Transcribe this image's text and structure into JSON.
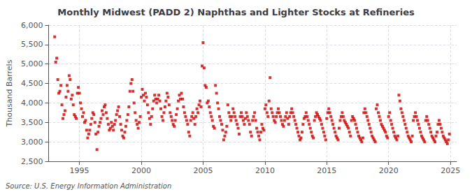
{
  "chart_data": {
    "type": "scatter",
    "title": "Monthly Midwest (PADD 2) Naphthas and Lighter Stocks at Refineries",
    "ylabel": "Thousand Barrels",
    "annotation": "Source: U.S. Energy Information Administration",
    "color": "#CC0000",
    "marker": "square",
    "grid": true,
    "xlim": [
      1992.5,
      2025.5
    ],
    "xticks": [
      1995,
      2000,
      2005,
      2010,
      2015,
      2020,
      2025
    ],
    "ylim": [
      2500,
      6000
    ],
    "yticks": [
      {
        "value": 2500,
        "label": "2,500"
      },
      {
        "value": 3000,
        "label": "3,000"
      },
      {
        "value": 3500,
        "label": "3,500"
      },
      {
        "value": 4000,
        "label": "4,000"
      },
      {
        "value": 4500,
        "label": "4,500"
      },
      {
        "value": 5000,
        "label": "5,000"
      },
      {
        "value": 5500,
        "label": "5,500"
      },
      {
        "value": 6000,
        "label": "6,000"
      }
    ],
    "x": [
      1993.0,
      1993.083,
      1993.167,
      1993.25,
      1993.333,
      1993.417,
      1993.5,
      1993.583,
      1993.667,
      1993.75,
      1993.833,
      1993.917,
      1994.0,
      1994.083,
      1994.167,
      1994.25,
      1994.333,
      1994.417,
      1994.5,
      1994.583,
      1994.667,
      1994.75,
      1994.833,
      1994.917,
      1995.0,
      1995.083,
      1995.167,
      1995.25,
      1995.333,
      1995.417,
      1995.5,
      1995.583,
      1995.667,
      1995.75,
      1995.833,
      1995.917,
      1996.0,
      1996.083,
      1996.167,
      1996.25,
      1996.333,
      1996.417,
      1996.5,
      1996.583,
      1996.667,
      1996.75,
      1996.833,
      1996.917,
      1997.0,
      1997.083,
      1997.167,
      1997.25,
      1997.333,
      1997.417,
      1997.5,
      1997.583,
      1997.667,
      1997.75,
      1997.833,
      1997.917,
      1998.0,
      1998.083,
      1998.167,
      1998.25,
      1998.333,
      1998.417,
      1998.5,
      1998.583,
      1998.667,
      1998.75,
      1998.833,
      1998.917,
      1999.0,
      1999.083,
      1999.167,
      1999.25,
      1999.333,
      1999.417,
      1999.5,
      1999.583,
      1999.667,
      1999.75,
      1999.833,
      1999.917,
      2000.0,
      2000.083,
      2000.167,
      2000.25,
      2000.333,
      2000.417,
      2000.5,
      2000.583,
      2000.667,
      2000.75,
      2000.833,
      2000.917,
      2001.0,
      2001.083,
      2001.167,
      2001.25,
      2001.333,
      2001.417,
      2001.5,
      2001.583,
      2001.667,
      2001.75,
      2001.833,
      2001.917,
      2002.0,
      2002.083,
      2002.167,
      2002.25,
      2002.333,
      2002.417,
      2002.5,
      2002.583,
      2002.667,
      2002.75,
      2002.833,
      2002.917,
      2003.0,
      2003.083,
      2003.167,
      2003.25,
      2003.333,
      2003.417,
      2003.5,
      2003.583,
      2003.667,
      2003.75,
      2003.833,
      2003.917,
      2004.0,
      2004.083,
      2004.167,
      2004.25,
      2004.333,
      2004.417,
      2004.5,
      2004.583,
      2004.667,
      2004.75,
      2004.833,
      2004.917,
      2005.0,
      2005.083,
      2005.167,
      2005.25,
      2005.333,
      2005.417,
      2005.5,
      2005.583,
      2005.667,
      2005.75,
      2005.833,
      2005.917,
      2006.0,
      2006.083,
      2006.167,
      2006.25,
      2006.333,
      2006.417,
      2006.5,
      2006.583,
      2006.667,
      2006.75,
      2006.833,
      2006.917,
      2007.0,
      2007.083,
      2007.167,
      2007.25,
      2007.333,
      2007.417,
      2007.5,
      2007.583,
      2007.667,
      2007.75,
      2007.833,
      2007.917,
      2008.0,
      2008.083,
      2008.167,
      2008.25,
      2008.333,
      2008.417,
      2008.5,
      2008.583,
      2008.667,
      2008.75,
      2008.833,
      2008.917,
      2009.0,
      2009.083,
      2009.167,
      2009.25,
      2009.333,
      2009.417,
      2009.5,
      2009.583,
      2009.667,
      2009.75,
      2009.833,
      2009.917,
      2010.0,
      2010.083,
      2010.167,
      2010.25,
      2010.333,
      2010.417,
      2010.5,
      2010.583,
      2010.667,
      2010.75,
      2010.833,
      2010.917,
      2011.0,
      2011.083,
      2011.167,
      2011.25,
      2011.333,
      2011.417,
      2011.5,
      2011.583,
      2011.667,
      2011.75,
      2011.833,
      2011.917,
      2012.0,
      2012.083,
      2012.167,
      2012.25,
      2012.333,
      2012.417,
      2012.5,
      2012.583,
      2012.667,
      2012.75,
      2012.833,
      2012.917,
      2013.0,
      2013.083,
      2013.167,
      2013.25,
      2013.333,
      2013.417,
      2013.5,
      2013.583,
      2013.667,
      2013.75,
      2013.833,
      2013.917,
      2014.0,
      2014.083,
      2014.167,
      2014.25,
      2014.333,
      2014.417,
      2014.5,
      2014.583,
      2014.667,
      2014.75,
      2014.833,
      2014.917,
      2015.0,
      2015.083,
      2015.167,
      2015.25,
      2015.333,
      2015.417,
      2015.5,
      2015.583,
      2015.667,
      2015.75,
      2015.833,
      2015.917,
      2016.0,
      2016.083,
      2016.167,
      2016.25,
      2016.333,
      2016.417,
      2016.5,
      2016.583,
      2016.667,
      2016.75,
      2016.833,
      2016.917,
      2017.0,
      2017.083,
      2017.167,
      2017.25,
      2017.333,
      2017.417,
      2017.5,
      2017.583,
      2017.667,
      2017.75,
      2017.833,
      2017.917,
      2018.0,
      2018.083,
      2018.167,
      2018.25,
      2018.333,
      2018.417,
      2018.5,
      2018.583,
      2018.667,
      2018.75,
      2018.833,
      2018.917,
      2019.0,
      2019.083,
      2019.167,
      2019.25,
      2019.333,
      2019.417,
      2019.5,
      2019.583,
      2019.667,
      2019.75,
      2019.833,
      2019.917,
      2020.0,
      2020.083,
      2020.167,
      2020.25,
      2020.333,
      2020.417,
      2020.5,
      2020.583,
      2020.667,
      2020.75,
      2020.833,
      2020.917,
      2021.0,
      2021.083,
      2021.167,
      2021.25,
      2021.333,
      2021.417,
      2021.5,
      2021.583,
      2021.667,
      2021.75,
      2021.833,
      2021.917,
      2022.0,
      2022.083,
      2022.167,
      2022.25,
      2022.333,
      2022.417,
      2022.5,
      2022.583,
      2022.667,
      2022.75,
      2022.833,
      2022.917,
      2023.0,
      2023.083,
      2023.167,
      2023.25,
      2023.333,
      2023.417,
      2023.5,
      2023.583,
      2023.667,
      2023.75,
      2023.833,
      2023.917,
      2024.0,
      2024.083,
      2024.167,
      2024.25,
      2024.333,
      2024.417,
      2024.5,
      2024.583,
      2024.667,
      2024.75,
      2024.833,
      2024.917
    ],
    "values": [
      5700,
      5050,
      5150,
      4600,
      4250,
      4300,
      4450,
      3950,
      3600,
      3700,
      3800,
      4150,
      4450,
      4300,
      4700,
      4600,
      4100,
      4200,
      3950,
      3700,
      3650,
      3600,
      4250,
      4400,
      4250,
      4000,
      3850,
      3650,
      3750,
      3500,
      3550,
      3300,
      3100,
      3200,
      3300,
      3450,
      3600,
      3750,
      3700,
      3500,
      3200,
      2800,
      3250,
      3400,
      3500,
      3600,
      3800,
      3700,
      3900,
      3950,
      3750,
      3600,
      3450,
      3300,
      3350,
      3500,
      3400,
      3300,
      3450,
      3550,
      3700,
      3800,
      3900,
      3650,
      3450,
      3300,
      3150,
      3100,
      3250,
      3400,
      3550,
      3700,
      3900,
      4300,
      4500,
      4600,
      4300,
      4000,
      3750,
      3550,
      3450,
      3350,
      3500,
      3650,
      4150,
      4350,
      4200,
      4050,
      4250,
      4150,
      3950,
      3750,
      3600,
      3450,
      3650,
      3850,
      4050,
      4200,
      4100,
      4000,
      4100,
      4200,
      4050,
      3850,
      3650,
      3550,
      3750,
      3900,
      4050,
      4250,
      4150,
      3950,
      3750,
      3650,
      3550,
      3450,
      3400,
      3550,
      3700,
      3850,
      4050,
      4200,
      4100,
      4250,
      4100,
      3900,
      3750,
      3650,
      3550,
      3450,
      3250,
      3150,
      3550,
      3650,
      3750,
      3600,
      3450,
      3650,
      3850,
      3750,
      3950,
      4050,
      3900,
      4950,
      5550,
      4900,
      4450,
      4400,
      4000,
      4050,
      3900,
      3750,
      3650,
      3550,
      3400,
      3350,
      4450,
      4250,
      4000,
      3850,
      3650,
      3550,
      3450,
      3300,
      3050,
      3150,
      3250,
      3400,
      3950,
      3750,
      3650,
      3550,
      3650,
      3850,
      3750,
      3650,
      3550,
      3450,
      3350,
      3200,
      3650,
      3750,
      3650,
      3550,
      3450,
      3600,
      3750,
      3650,
      3550,
      3450,
      3250,
      3150,
      3550,
      3650,
      3750,
      3550,
      3350,
      3250,
      3150,
      3050,
      3250,
      3450,
      3350,
      3300,
      3850,
      3950,
      3750,
      3650,
      4050,
      4650,
      3850,
      3750,
      3650,
      3550,
      3500,
      3650,
      3750,
      3850,
      3750,
      3650,
      3550,
      3450,
      3400,
      3550,
      3650,
      3750,
      3600,
      3450,
      3650,
      3750,
      3850,
      3750,
      3650,
      3550,
      3450,
      3350,
      3250,
      3150,
      3050,
      3100,
      3250,
      3450,
      3600,
      3650,
      3750,
      3650,
      3550,
      3450,
      3350,
      3250,
      3150,
      3100,
      3550,
      3650,
      3750,
      3700,
      3650,
      3600,
      3550,
      3450,
      3350,
      3250,
      3150,
      3050,
      3600,
      3750,
      3850,
      3750,
      3650,
      3550,
      3450,
      3350,
      3250,
      3150,
      3100,
      3050,
      3350,
      3550,
      3650,
      3750,
      3650,
      3550,
      3500,
      3450,
      3400,
      3350,
      3250,
      3150,
      3550,
      3650,
      3600,
      3550,
      3450,
      3350,
      3250,
      3150,
      3100,
      3050,
      3000,
      3100,
      3750,
      3850,
      3750,
      3650,
      3550,
      3450,
      3350,
      3250,
      3150,
      3100,
      3050,
      3000,
      3850,
      3950,
      3750,
      3650,
      3550,
      3450,
      3400,
      3350,
      3300,
      3250,
      3150,
      3100,
      3650,
      3750,
      3550,
      3450,
      3350,
      3250,
      3150,
      3100,
      3050,
      3150,
      4200,
      4050,
      3850,
      3750,
      3650,
      3550,
      3450,
      3350,
      3250,
      3150,
      3100,
      3050,
      3000,
      3150,
      3550,
      3650,
      3750,
      3650,
      3550,
      3450,
      3350,
      3250,
      3150,
      3100,
      3050,
      3000,
      3550,
      3650,
      3550,
      3450,
      3350,
      3250,
      3150,
      3100,
      3050,
      3000,
      3150,
      3250,
      3450,
      3550,
      3450,
      3350,
      3250,
      3150,
      3100,
      3050,
      3000,
      2950,
      3050,
      3200
    ]
  }
}
